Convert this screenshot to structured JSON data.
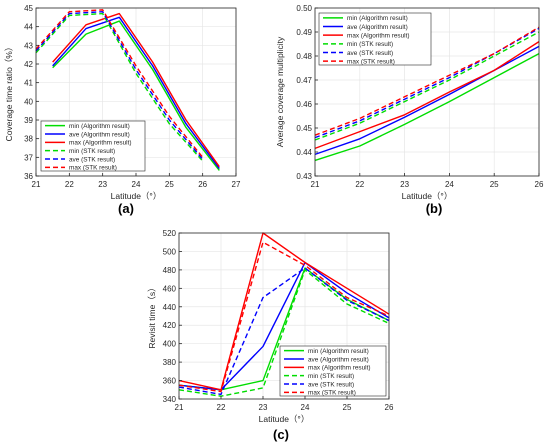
{
  "series_styles": [
    {
      "name": "min (Algorithm result)",
      "color": "#00dd00",
      "dash": "solid"
    },
    {
      "name": "ave (Algorithm result)",
      "color": "#0000ff",
      "dash": "solid"
    },
    {
      "name": "max (Algorithm result)",
      "color": "#ff0000",
      "dash": "solid"
    },
    {
      "name": "min (STK result)",
      "color": "#00dd00",
      "dash": "dashed"
    },
    {
      "name": "ave (STK result)",
      "color": "#0000ff",
      "dash": "dashed"
    },
    {
      "name": "max (STK result)",
      "color": "#ff0000",
      "dash": "dashed"
    }
  ],
  "chart_data": [
    {
      "panel_label": "(a)",
      "type": "line",
      "title": "",
      "xlabel": "Latitude（°）",
      "ylabel": "Coverage time ratio（%）",
      "xlim": [
        21,
        27
      ],
      "ylim": [
        36,
        45
      ],
      "xticks": [
        21,
        22,
        23,
        24,
        25,
        26,
        27
      ],
      "yticks": [
        36,
        37,
        38,
        39,
        40,
        41,
        42,
        43,
        44,
        45
      ],
      "grid": true,
      "legend": "bottom-left",
      "series": [
        {
          "name": "min (Algorithm result)",
          "x": [
            21.5,
            22.5,
            23.5,
            24.5,
            25.5,
            26.5
          ],
          "y": [
            41.8,
            43.6,
            44.3,
            41.7,
            38.6,
            36.3
          ]
        },
        {
          "name": "ave (Algorithm result)",
          "x": [
            21.5,
            22.5,
            23.5,
            24.5,
            25.5,
            26.5
          ],
          "y": [
            41.9,
            43.9,
            44.5,
            41.9,
            38.8,
            36.4
          ]
        },
        {
          "name": "max (Algorithm result)",
          "x": [
            21.5,
            22.5,
            23.5,
            24.5,
            25.5,
            26.5
          ],
          "y": [
            42.1,
            44.1,
            44.7,
            42.1,
            39.0,
            36.5
          ]
        },
        {
          "name": "min (STK result)",
          "x": [
            21,
            22,
            23,
            24,
            25,
            26
          ],
          "y": [
            42.6,
            44.6,
            44.7,
            41.5,
            38.8,
            36.8
          ]
        },
        {
          "name": "ave (STK result)",
          "x": [
            21,
            22,
            23,
            24,
            25,
            26
          ],
          "y": [
            42.7,
            44.7,
            44.8,
            41.7,
            39.0,
            36.9
          ]
        },
        {
          "name": "max (STK result)",
          "x": [
            21,
            22,
            23,
            24,
            25,
            26
          ],
          "y": [
            42.8,
            44.8,
            44.9,
            41.9,
            39.2,
            37.0
          ]
        }
      ]
    },
    {
      "panel_label": "(b)",
      "type": "line",
      "title": "",
      "xlabel": "Latitude（°）",
      "ylabel": "Average coverage multiplicity",
      "xlim": [
        21,
        26
      ],
      "ylim": [
        0.43,
        0.5
      ],
      "xticks": [
        21,
        22,
        23,
        24,
        25,
        26
      ],
      "yticks": [
        0.43,
        0.44,
        0.45,
        0.46,
        0.47,
        0.48,
        0.49,
        0.5
      ],
      "grid": true,
      "legend": "top-left",
      "series": [
        {
          "name": "min (Algorithm result)",
          "x": [
            21,
            22,
            23,
            24,
            25,
            26
          ],
          "y": [
            0.4365,
            0.4425,
            0.4515,
            0.461,
            0.471,
            0.481
          ]
        },
        {
          "name": "ave (Algorithm result)",
          "x": [
            21,
            22,
            23,
            24,
            25,
            26
          ],
          "y": [
            0.439,
            0.4455,
            0.4545,
            0.464,
            0.474,
            0.484
          ]
        },
        {
          "name": "max (Algorithm result)",
          "x": [
            21,
            22,
            23,
            24,
            25,
            26
          ],
          "y": [
            0.4415,
            0.4485,
            0.4555,
            0.465,
            0.474,
            0.486
          ]
        },
        {
          "name": "min (STK result)",
          "x": [
            21,
            22,
            23,
            24,
            25,
            26
          ],
          "y": [
            0.445,
            0.452,
            0.461,
            0.47,
            0.48,
            0.49
          ]
        },
        {
          "name": "ave (STK result)",
          "x": [
            21,
            22,
            23,
            24,
            25,
            26
          ],
          "y": [
            0.446,
            0.453,
            0.462,
            0.471,
            0.481,
            0.4915
          ]
        },
        {
          "name": "max (STK result)",
          "x": [
            21,
            22,
            23,
            24,
            25,
            26
          ],
          "y": [
            0.447,
            0.454,
            0.463,
            0.472,
            0.481,
            0.492
          ]
        }
      ]
    },
    {
      "panel_label": "(c)",
      "type": "line",
      "title": "",
      "xlabel": "Latitude（°）",
      "ylabel": "Revisit time（s）",
      "xlim": [
        21,
        26
      ],
      "ylim": [
        340,
        520
      ],
      "xticks": [
        21,
        22,
        23,
        24,
        25,
        26
      ],
      "yticks": [
        340,
        360,
        380,
        400,
        420,
        440,
        460,
        480,
        500,
        520
      ],
      "grid": true,
      "legend": "bottom-right",
      "series": [
        {
          "name": "min (Algorithm result)",
          "x": [
            21,
            22,
            23,
            24,
            25,
            26
          ],
          "y": [
            355,
            350,
            360,
            482,
            448,
            425
          ]
        },
        {
          "name": "ave (Algorithm result)",
          "x": [
            21,
            22,
            23,
            24,
            25,
            26
          ],
          "y": [
            355,
            350,
            397,
            488,
            455,
            428
          ]
        },
        {
          "name": "max (Algorithm result)",
          "x": [
            21,
            22,
            23,
            24,
            25,
            26
          ],
          "y": [
            360,
            350,
            520,
            488,
            460,
            432
          ]
        },
        {
          "name": "min (STK result)",
          "x": [
            21,
            22,
            23,
            24,
            25,
            26
          ],
          "y": [
            350,
            343,
            352,
            480,
            443,
            422
          ]
        },
        {
          "name": "ave (STK result)",
          "x": [
            21,
            22,
            23,
            24,
            25,
            26
          ],
          "y": [
            353,
            345,
            450,
            482,
            447,
            425
          ]
        },
        {
          "name": "max (STK result)",
          "x": [
            21,
            22,
            23,
            24,
            25,
            26
          ],
          "y": [
            355,
            348,
            510,
            485,
            450,
            430
          ]
        }
      ]
    }
  ]
}
